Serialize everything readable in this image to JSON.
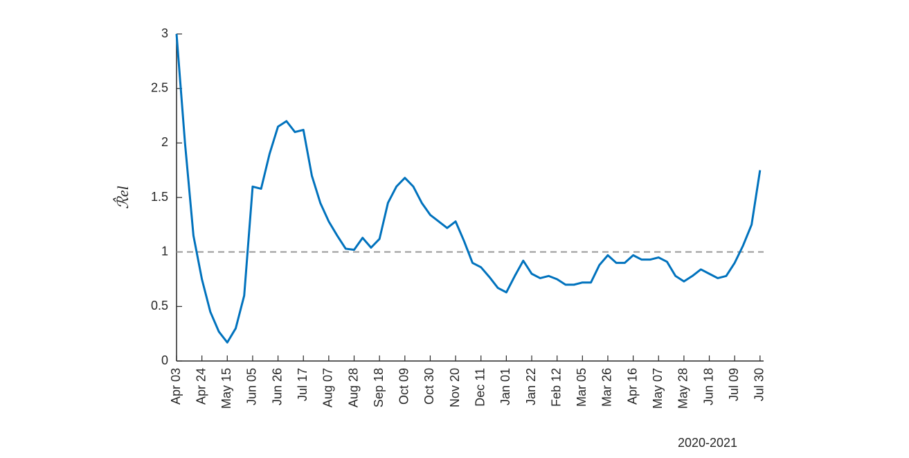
{
  "chart_data": {
    "type": "line",
    "ylabel": "ℛ̂el",
    "xlabel": "2020-2021",
    "categories": [
      "Apr 03",
      null,
      null,
      "Apr 24",
      null,
      null,
      "May 15",
      null,
      null,
      "Jun 05",
      null,
      null,
      "Jun 26",
      null,
      null,
      "Jul 17",
      null,
      null,
      "Aug 07",
      null,
      null,
      "Aug 28",
      null,
      null,
      "Sep 18",
      null,
      null,
      "Oct 09",
      null,
      null,
      "Oct 30",
      null,
      null,
      "Nov 20",
      null,
      null,
      "Dec 11",
      null,
      null,
      "Jan 01",
      null,
      null,
      "Jan 22",
      null,
      null,
      "Feb 12",
      null,
      null,
      "Mar 05",
      null,
      null,
      "Mar 26",
      null,
      null,
      "Apr 16",
      null,
      null,
      "May 07",
      null,
      null,
      "May 28",
      null,
      null,
      "Jun 18",
      null,
      null,
      "Jul 09",
      null,
      null,
      "Jul 30"
    ],
    "series": [
      {
        "color": "#0072bd",
        "values": [
          3.0,
          2.0,
          1.15,
          0.75,
          0.45,
          0.27,
          0.17,
          0.3,
          0.6,
          1.6,
          1.58,
          1.9,
          2.15,
          2.2,
          2.1,
          2.12,
          1.7,
          1.45,
          1.28,
          1.15,
          1.03,
          1.02,
          1.13,
          1.04,
          1.12,
          1.45,
          1.6,
          1.68,
          1.6,
          1.45,
          1.34,
          1.28,
          1.22,
          1.28,
          1.1,
          0.9,
          0.86,
          0.77,
          0.67,
          0.63,
          0.78,
          0.92,
          0.8,
          0.76,
          0.78,
          0.75,
          0.7,
          0.7,
          0.72,
          0.72,
          0.88,
          0.97,
          0.9,
          0.9,
          0.97,
          0.93,
          0.93,
          0.95,
          0.91,
          0.78,
          0.73,
          0.78,
          0.84,
          0.8,
          0.76,
          0.78,
          0.9,
          1.06,
          1.25,
          1.75
        ]
      }
    ],
    "ylim": [
      0,
      3
    ],
    "yticks": [
      0,
      0.5,
      1,
      1.5,
      2,
      2.5,
      3
    ],
    "reference_line": {
      "value": 1,
      "color": "#999999"
    }
  }
}
